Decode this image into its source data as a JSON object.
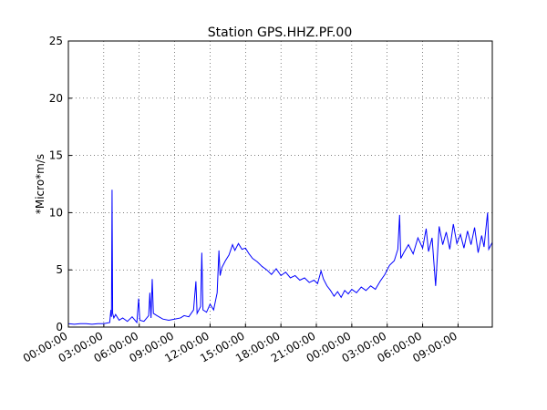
{
  "chart_data": {
    "type": "line",
    "title": "Station GPS.HHZ.PF.00",
    "y_label": "*Micro*m/s",
    "x": [
      0,
      0.5,
      1,
      1.5,
      2,
      2.5,
      3,
      3.5,
      3.6,
      3.65,
      3.7,
      3.75,
      3.85,
      4,
      4.3,
      4.6,
      5,
      5.4,
      5.8,
      5.95,
      6.05,
      6.4,
      6.8,
      6.9,
      7.0,
      7.1,
      7.2,
      7.5,
      8,
      8.5,
      9,
      9.5,
      9.8,
      10.2,
      10.6,
      10.8,
      10.9,
      11.2,
      11.3,
      11.4,
      11.7,
      12,
      12.3,
      12.6,
      12.75,
      12.85,
      13,
      13.3,
      13.6,
      13.9,
      14.1,
      14.4,
      14.7,
      15,
      15.3,
      15.6,
      16,
      16.4,
      16.8,
      17.2,
      17.6,
      18,
      18.4,
      18.8,
      19.2,
      19.6,
      20,
      20.4,
      20.8,
      21.1,
      21.4,
      21.6,
      21.9,
      22.2,
      22.5,
      22.8,
      23.1,
      23.4,
      23.7,
      24,
      24.4,
      24.8,
      25.2,
      25.6,
      26,
      26.4,
      26.8,
      27.2,
      27.6,
      27.9,
      28.05,
      28.15,
      28.4,
      28.8,
      29.2,
      29.6,
      30,
      30.3,
      30.5,
      30.8,
      31.1,
      31.4,
      31.7,
      32,
      32.3,
      32.6,
      32.9,
      33.2,
      33.5,
      33.8,
      34.1,
      34.4,
      34.7,
      35,
      35.2,
      35.5,
      35.6,
      35.9
    ],
    "series": [
      {
        "color": "#0000ff",
        "values": [
          0.3,
          0.25,
          0.3,
          0.3,
          0.25,
          0.3,
          0.3,
          0.4,
          1.5,
          0.9,
          12,
          1.2,
          0.8,
          1.1,
          0.6,
          0.8,
          0.5,
          0.9,
          0.4,
          2.5,
          0.6,
          0.5,
          1.0,
          3.0,
          0.8,
          4.2,
          1.2,
          1.0,
          0.7,
          0.6,
          0.7,
          0.8,
          1.0,
          0.9,
          1.5,
          4.0,
          1.2,
          1.8,
          6.5,
          1.5,
          1.3,
          2.0,
          1.5,
          3.0,
          6.7,
          4.5,
          5.2,
          5.8,
          6.3,
          7.2,
          6.7,
          7.3,
          6.8,
          6.9,
          6.4,
          6.0,
          5.7,
          5.3,
          5.0,
          4.6,
          5.1,
          4.5,
          4.8,
          4.3,
          4.5,
          4.1,
          4.3,
          3.9,
          4.1,
          3.8,
          4.9,
          4.2,
          3.6,
          3.2,
          2.7,
          3.1,
          2.6,
          3.2,
          2.9,
          3.3,
          3.0,
          3.5,
          3.2,
          3.6,
          3.3,
          4.0,
          4.6,
          5.4,
          5.8,
          6.8,
          9.8,
          6.0,
          6.5,
          7.2,
          6.4,
          7.8,
          6.9,
          8.6,
          6.6,
          7.8,
          3.6,
          8.8,
          7.2,
          8.3,
          6.8,
          9.0,
          7.3,
          8.1,
          6.9,
          8.4,
          7.2,
          8.7,
          6.5,
          8.0,
          7.0,
          10,
          6.8,
          7.4
        ]
      }
    ],
    "xlim": [
      0,
      35.9
    ],
    "xticks": [
      {
        "value": 0,
        "label": "00:00:00"
      },
      {
        "value": 3,
        "label": "03:00:00"
      },
      {
        "value": 6,
        "label": "06:00:00"
      },
      {
        "value": 9,
        "label": "09:00:00"
      },
      {
        "value": 12,
        "label": "12:00:00"
      },
      {
        "value": 15,
        "label": "15:00:00"
      },
      {
        "value": 18,
        "label": "18:00:00"
      },
      {
        "value": 21,
        "label": "21:00:00"
      },
      {
        "value": 24,
        "label": "00:00:00"
      },
      {
        "value": 27,
        "label": "03:00:00"
      },
      {
        "value": 30,
        "label": "06:00:00"
      },
      {
        "value": 33,
        "label": "09:00:00"
      }
    ],
    "ylim": [
      0,
      25
    ],
    "yticks": [
      0,
      5,
      10,
      15,
      20,
      25
    ],
    "grid": true
  }
}
